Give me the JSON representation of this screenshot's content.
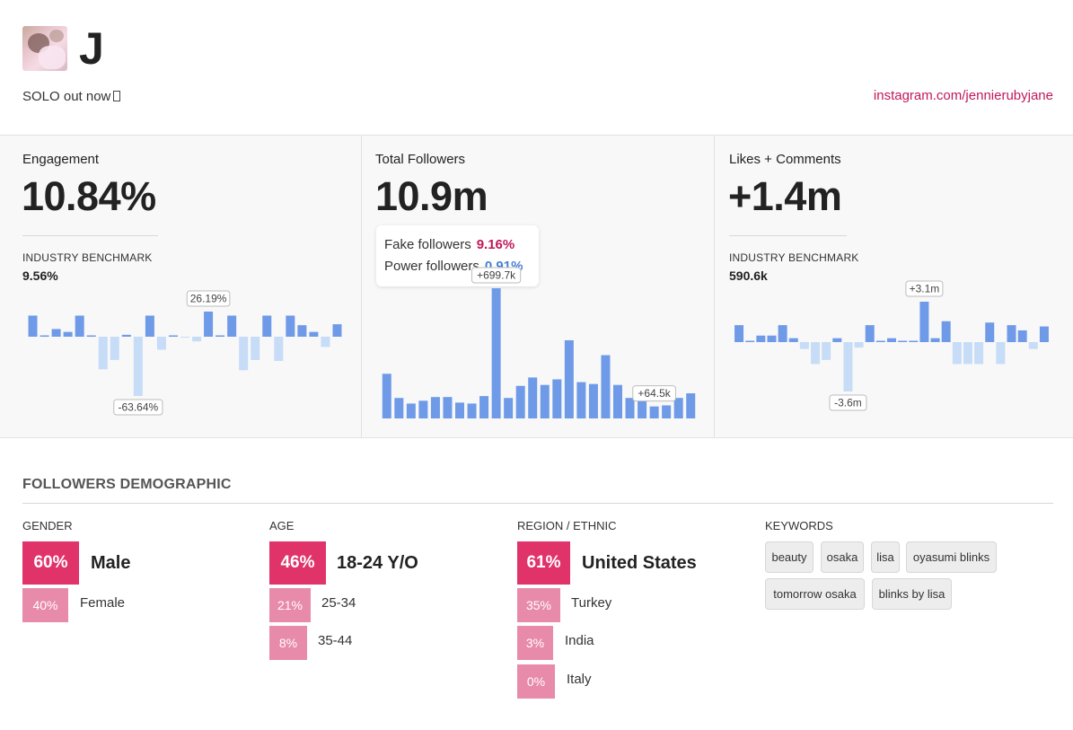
{
  "profile": {
    "name": "J",
    "bio": "SOLO out now",
    "link": "instagram.com/jennierubyjane"
  },
  "engagement": {
    "title": "Engagement",
    "value": "10.84%",
    "benchmark_label": "INDUSTRY BENCHMARK",
    "benchmark_value": "9.56%"
  },
  "followers": {
    "title": "Total Followers",
    "value": "10.9m",
    "fake_label": "Fake followers",
    "fake_value": "9.16%",
    "power_label": "Power followers",
    "power_value": "0.91%"
  },
  "likes": {
    "title": "Likes + Comments",
    "value": "+1.4m",
    "benchmark_label": "INDUSTRY BENCHMARK",
    "benchmark_value": "590.6k"
  },
  "chart_data": [
    {
      "type": "bar",
      "name": "engagement-change",
      "values": [
        22,
        0,
        8,
        5,
        22,
        0,
        -35,
        -25,
        2,
        -63.64,
        22,
        -14,
        0,
        -1,
        -5,
        26.19,
        0,
        22,
        -36,
        -25,
        22,
        -26,
        22,
        12,
        5,
        -11,
        13
      ],
      "annotations": [
        {
          "index": 15,
          "text": "26.19%"
        },
        {
          "index": 9,
          "text": "-63.64%"
        }
      ],
      "colors": {
        "positive": "#6f9ae8",
        "negative": "#c7dcf7"
      }
    },
    {
      "type": "bar",
      "name": "follower-growth",
      "values": [
        240,
        110,
        80,
        95,
        115,
        115,
        85,
        80,
        120,
        699.7,
        110,
        175,
        220,
        180,
        210,
        420,
        195,
        185,
        340,
        180,
        110,
        110,
        64.5,
        70,
        110,
        135
      ],
      "annotations": [
        {
          "index": 9,
          "text": "+699.7k"
        },
        {
          "index": 22,
          "text": "+64.5k"
        }
      ],
      "colors": {
        "positive": "#6f9ae8",
        "highlight": "#6f9ae8"
      }
    },
    {
      "type": "bar",
      "name": "likes-comments-change",
      "values": [
        1.3,
        0.1,
        0.5,
        0.5,
        1.3,
        0.3,
        -0.5,
        -1.6,
        -1.3,
        0.3,
        -3.6,
        -0.4,
        1.3,
        0.1,
        0.3,
        0,
        0,
        3.1,
        0.3,
        1.6,
        -1.6,
        -1.6,
        -1.6,
        1.5,
        -1.6,
        1.3,
        0.9,
        -0.5,
        1.2
      ],
      "annotations": [
        {
          "index": 17,
          "text": "+3.1m"
        },
        {
          "index": 10,
          "text": "-3.6m"
        }
      ],
      "colors": {
        "positive": "#6f9ae8",
        "negative": "#c7dcf7"
      }
    }
  ],
  "demographic": {
    "title": "FOLLOWERS DEMOGRAPHIC",
    "gender": {
      "label": "GENDER",
      "rows": [
        {
          "pct": "60%",
          "label": "Male"
        },
        {
          "pct": "40%",
          "label": "Female"
        }
      ]
    },
    "age": {
      "label": "AGE",
      "rows": [
        {
          "pct": "46%",
          "label": "18-24 Y/O"
        },
        {
          "pct": "21%",
          "label": "25-34"
        },
        {
          "pct": "8%",
          "label": "35-44"
        }
      ]
    },
    "region": {
      "label": "REGION / ETHNIC",
      "rows": [
        {
          "pct": "61%",
          "label": "United States"
        },
        {
          "pct": "35%",
          "label": "Turkey"
        },
        {
          "pct": "3%",
          "label": "India"
        },
        {
          "pct": "0%",
          "label": "Italy"
        }
      ]
    },
    "keywords": {
      "label": "KEYWORDS",
      "items": [
        "beauty",
        "osaka",
        "lisa",
        "oyasumi blinks",
        "tomorrow osaka",
        "blinks by lisa"
      ]
    }
  }
}
